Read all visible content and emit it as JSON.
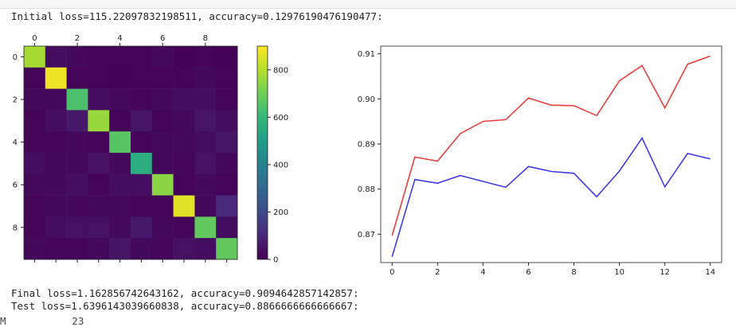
{
  "output": {
    "initial_line": "Initial loss=115.22097832198511, accuracy=0.12976190476190477:",
    "final_line": "Final loss=1.162856742643162, accuracy=0.9094642857142857:",
    "test_line": "Test loss=1.6396143039660838, accuracy=0.8866666666666667:",
    "cut_line": "M           23"
  },
  "chart_data": [
    {
      "type": "heatmap",
      "x_ticks": [
        "0",
        "2",
        "4",
        "6",
        "8"
      ],
      "y_ticks": [
        "0",
        "2",
        "4",
        "6",
        "8"
      ],
      "matrix": [
        [
          780,
          30,
          20,
          10,
          10,
          10,
          20,
          5,
          10,
          5
        ],
        [
          10,
          880,
          10,
          10,
          5,
          10,
          10,
          10,
          20,
          10
        ],
        [
          20,
          20,
          640,
          30,
          20,
          10,
          20,
          30,
          30,
          10
        ],
        [
          10,
          30,
          60,
          760,
          10,
          50,
          10,
          20,
          50,
          30
        ],
        [
          10,
          10,
          20,
          10,
          660,
          10,
          20,
          20,
          30,
          50
        ],
        [
          30,
          20,
          20,
          40,
          20,
          560,
          20,
          10,
          40,
          20
        ],
        [
          20,
          20,
          30,
          10,
          30,
          30,
          740,
          10,
          20,
          10
        ],
        [
          10,
          20,
          20,
          20,
          20,
          10,
          10,
          860,
          20,
          100
        ],
        [
          10,
          30,
          40,
          40,
          20,
          60,
          20,
          10,
          680,
          30
        ],
        [
          20,
          10,
          10,
          20,
          50,
          20,
          10,
          40,
          30,
          680
        ]
      ],
      "colorbar": {
        "ticks": [
          "0",
          "200",
          "400",
          "600",
          "800"
        ],
        "range": [
          0,
          900
        ],
        "colormap": [
          "#440154",
          "#482878",
          "#3e4989",
          "#31688e",
          "#26828e",
          "#1f9e89",
          "#35b779",
          "#6ece58",
          "#b5de2b",
          "#fde725"
        ]
      }
    },
    {
      "type": "line",
      "x": [
        0,
        1,
        2,
        3,
        4,
        5,
        6,
        7,
        8,
        9,
        10,
        11,
        12,
        13,
        14
      ],
      "x_ticks": [
        "0",
        "2",
        "4",
        "6",
        "8",
        "10",
        "12",
        "14"
      ],
      "y_ticks": [
        "0.87",
        "0.88",
        "0.89",
        "0.90",
        "0.91"
      ],
      "xlim": [
        -0.5,
        14.5
      ],
      "ylim": [
        0.8637,
        0.9117
      ],
      "series": [
        {
          "color": "#e8413c",
          "values": [
            0.8697,
            0.8871,
            0.8862,
            0.8923,
            0.895,
            0.8954,
            0.9002,
            0.8986,
            0.8985,
            0.8963,
            0.904,
            0.9074,
            0.898,
            0.9077,
            0.9095
          ]
        },
        {
          "color": "#3c3ce8",
          "values": [
            0.865,
            0.8821,
            0.8813,
            0.883,
            0.8817,
            0.8804,
            0.885,
            0.8839,
            0.8835,
            0.8783,
            0.884,
            0.8913,
            0.8805,
            0.8879,
            0.8867
          ]
        }
      ]
    }
  ]
}
